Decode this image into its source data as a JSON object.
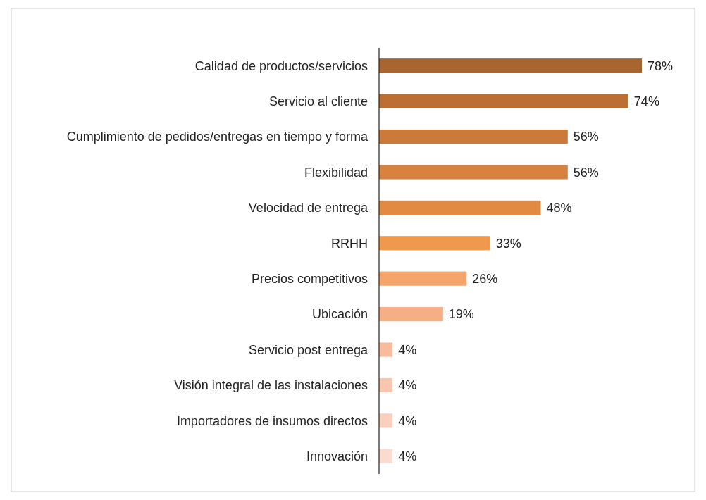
{
  "chart_data": {
    "type": "bar",
    "orientation": "horizontal",
    "categories": [
      "Calidad de productos/servicios",
      "Servicio al cliente",
      "Cumplimiento de pedidos/entregas en tiempo y forma",
      "Flexibilidad",
      "Velocidad de entrega",
      "RRHH",
      "Precios competitivos",
      "Ubicación",
      "Servicio post entrega",
      "Visión integral de las instalaciones",
      "Importadores de insumos directos",
      "Innovación"
    ],
    "values": [
      78,
      74,
      56,
      56,
      48,
      33,
      26,
      19,
      4,
      4,
      4,
      4
    ],
    "value_labels": [
      "78%",
      "74%",
      "56%",
      "56%",
      "48%",
      "33%",
      "26%",
      "19%",
      "4%",
      "4%",
      "4%",
      "4%"
    ],
    "colors": [
      "#a86530",
      "#bb6f33",
      "#cc7a3a",
      "#d7823e",
      "#e38a42",
      "#f0994d",
      "#f5a56a",
      "#f6ae85",
      "#f8bc9c",
      "#f9c7ad",
      "#facfbd",
      "#fbdbd0"
    ],
    "tick_labels": "y"
  }
}
